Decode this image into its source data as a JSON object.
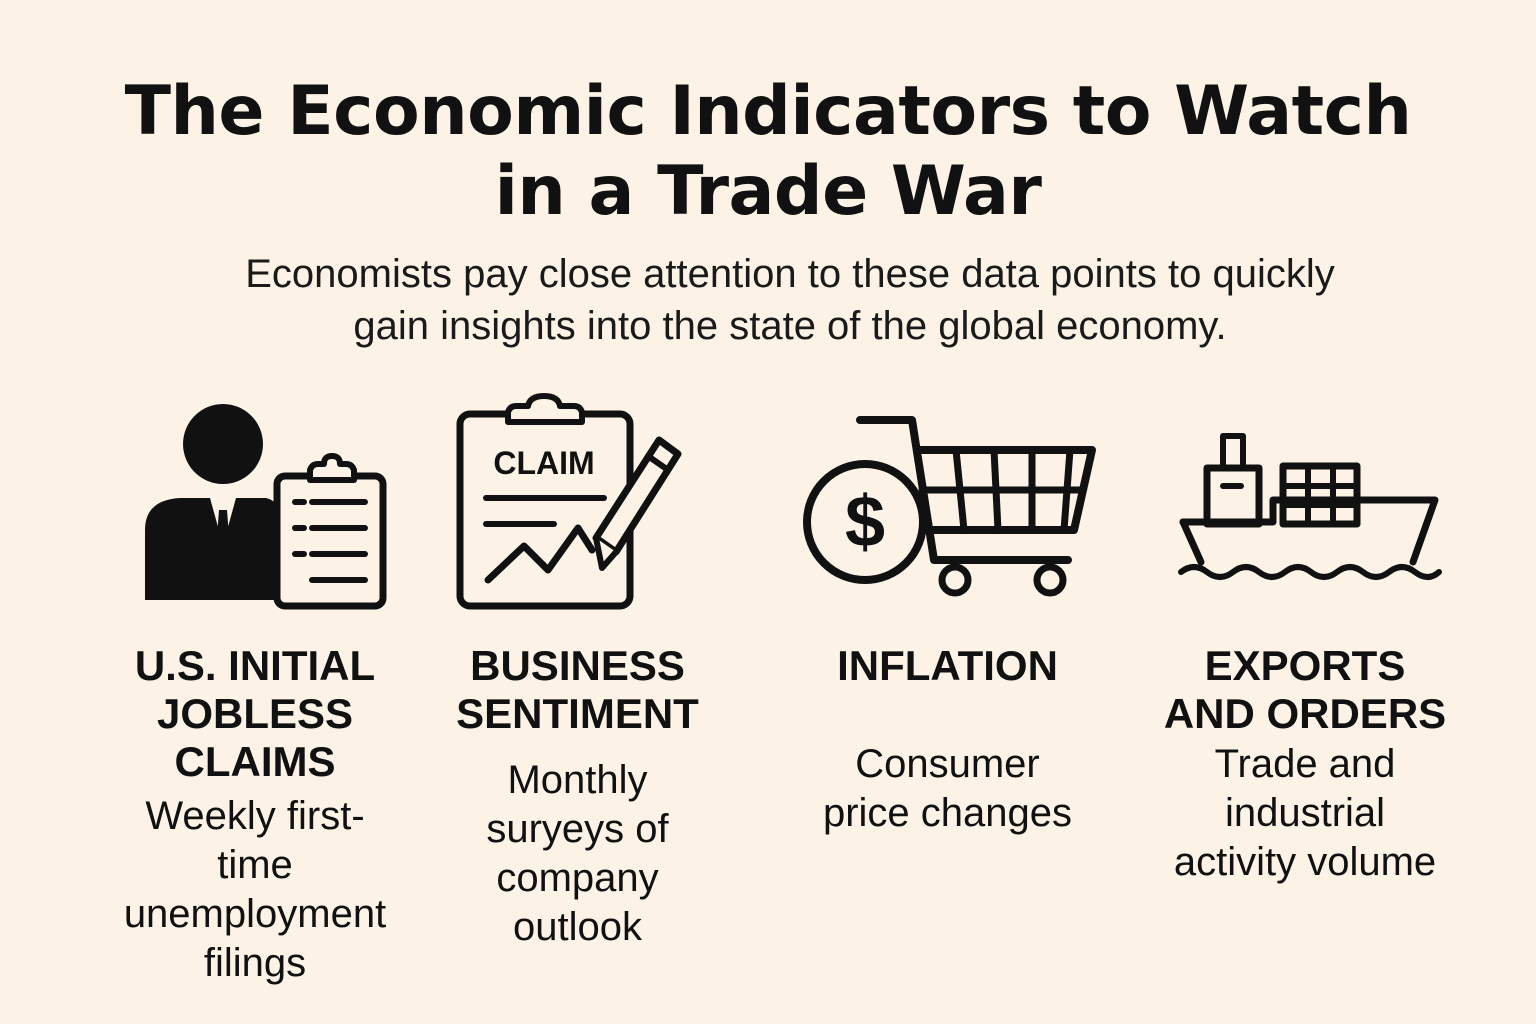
{
  "header": {
    "title_lines": [
      "The Economic Indicators to Watch",
      "in a Trade War"
    ],
    "subtitle_lines": [
      "Economists pay close attention to these data points to quickly",
      "gain insights into the state of the global economy."
    ]
  },
  "indicators": [
    {
      "icon": "person-clipboard-icon",
      "title_lines": [
        "U.S. INITIAL",
        "JOBLESS",
        "CLAIMS"
      ],
      "desc_lines": [
        "Weekly first-",
        "time",
        "unemployment",
        "filings"
      ]
    },
    {
      "icon": "claim-clipboard-pencil-icon",
      "icon_label": "CLAIM",
      "title_lines": [
        "BUSINESS",
        "SENTIMENT"
      ],
      "desc_lines": [
        "Monthly",
        "suryeys of",
        "company",
        "outlook"
      ]
    },
    {
      "icon": "dollar-shopping-cart-icon",
      "icon_label": "$",
      "title_lines": [
        "INFLATION"
      ],
      "desc_lines": [
        "Consumer",
        "price changes"
      ]
    },
    {
      "icon": "cargo-ship-icon",
      "title_lines": [
        "EXPORTS",
        "AND ORDERS"
      ],
      "desc_lines": [
        "Trade and",
        "industrial",
        "activity volume"
      ]
    }
  ],
  "colors": {
    "background": "#fcf3e6",
    "ink": "#111111"
  }
}
